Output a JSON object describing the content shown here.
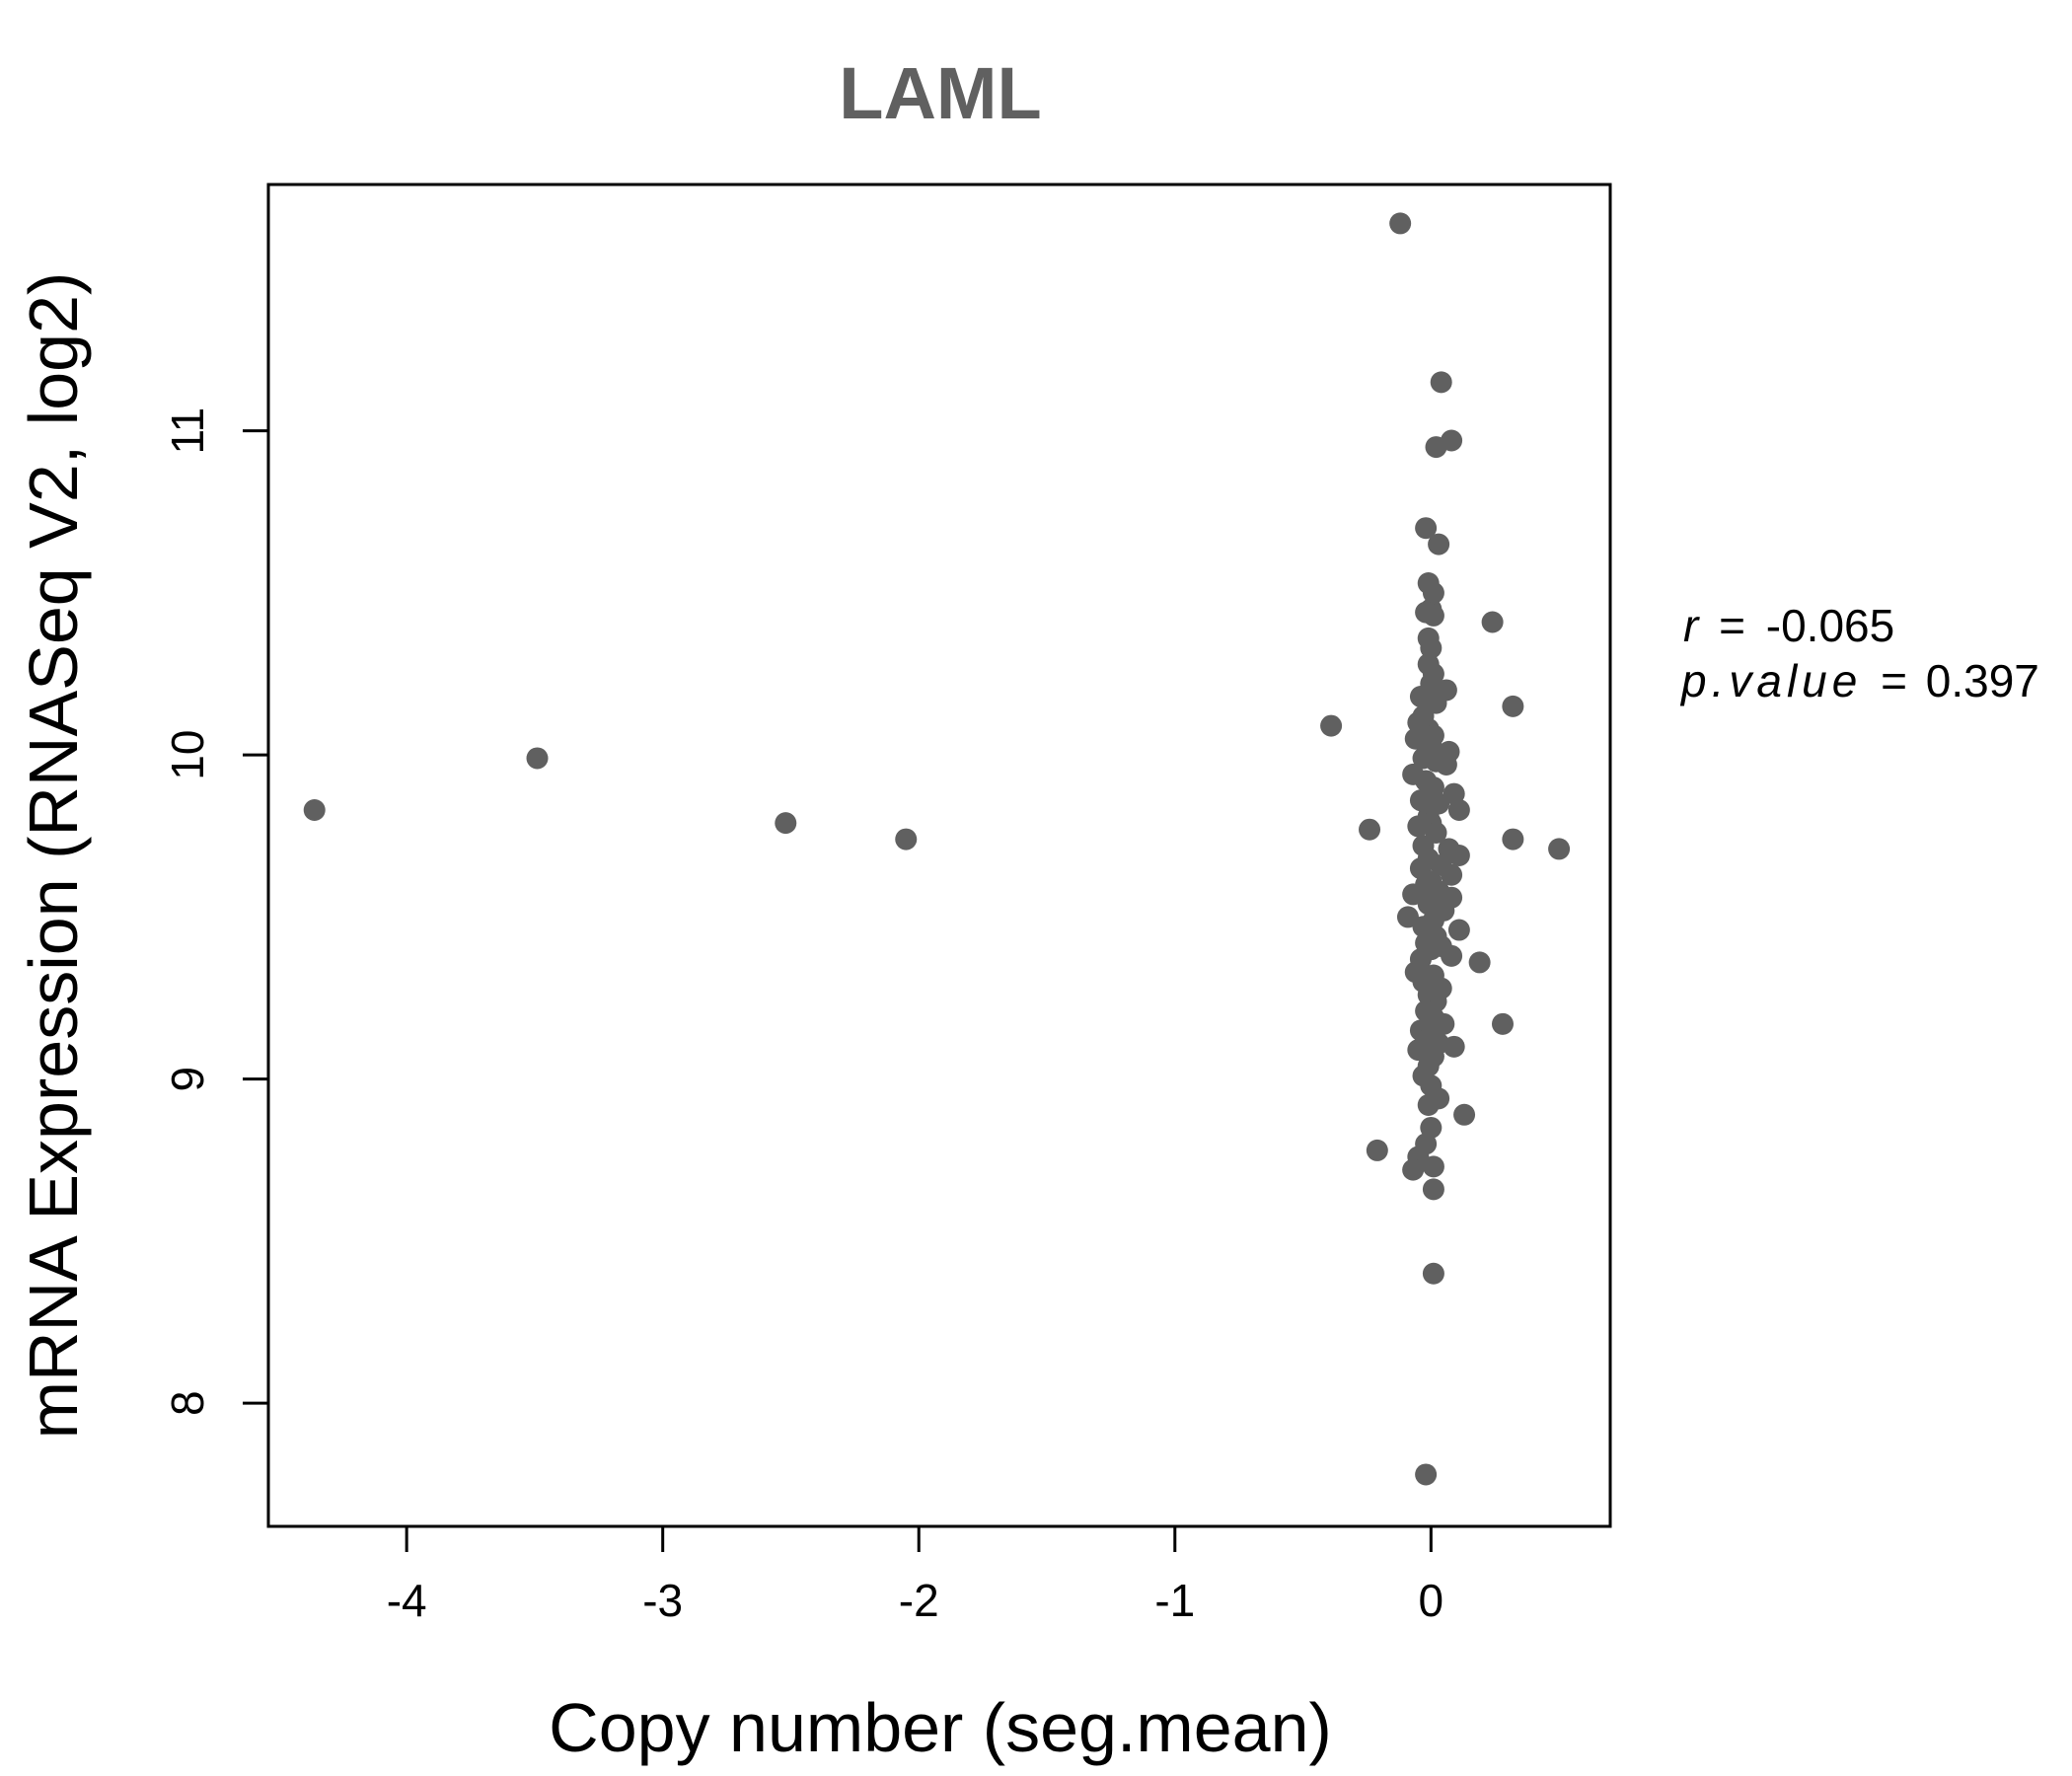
{
  "chart_data": {
    "type": "scatter",
    "title": "LAML",
    "xlabel": "Copy number (seg.mean)",
    "ylabel": "mRNA Expression (RNASeq V2, log2)",
    "xlim": [
      -4.54,
      0.7
    ],
    "ylim": [
      7.62,
      11.76
    ],
    "x_ticks": [
      -4,
      -3,
      -2,
      -1,
      0
    ],
    "x_tick_labels": [
      "-4",
      "-3",
      "-2",
      "-1",
      "0"
    ],
    "y_ticks": [
      8,
      9,
      10,
      11
    ],
    "y_tick_labels": [
      "8",
      "9",
      "10",
      "11"
    ],
    "grid": false,
    "legend": "none",
    "point_color": "#606060",
    "stats": {
      "r_symbol": "r",
      "r_value": "-0.065",
      "p_symbol": "p.value",
      "p_value": "0.397",
      "equals": "="
    },
    "points": [
      {
        "x": -4.36,
        "y": 9.83
      },
      {
        "x": -3.49,
        "y": 9.99
      },
      {
        "x": -2.52,
        "y": 9.79
      },
      {
        "x": -2.05,
        "y": 9.74
      },
      {
        "x": -0.39,
        "y": 10.09
      },
      {
        "x": -0.24,
        "y": 9.77
      },
      {
        "x": -0.21,
        "y": 8.78
      },
      {
        "x": -0.12,
        "y": 11.64
      },
      {
        "x": 0.04,
        "y": 11.15
      },
      {
        "x": 0.08,
        "y": 10.97
      },
      {
        "x": 0.02,
        "y": 10.95
      },
      {
        "x": -0.02,
        "y": 10.7
      },
      {
        "x": 0.03,
        "y": 10.65
      },
      {
        "x": -0.01,
        "y": 10.53
      },
      {
        "x": 0.01,
        "y": 10.5
      },
      {
        "x": 0.0,
        "y": 10.45
      },
      {
        "x": 0.01,
        "y": 10.43
      },
      {
        "x": -0.02,
        "y": 10.44
      },
      {
        "x": 0.24,
        "y": 10.41
      },
      {
        "x": -0.01,
        "y": 10.36
      },
      {
        "x": 0.0,
        "y": 10.33
      },
      {
        "x": -0.01,
        "y": 10.28
      },
      {
        "x": 0.01,
        "y": 10.25
      },
      {
        "x": 0.0,
        "y": 10.22
      },
      {
        "x": 0.06,
        "y": 10.2
      },
      {
        "x": -0.04,
        "y": 10.18
      },
      {
        "x": 0.02,
        "y": 10.16
      },
      {
        "x": 0.32,
        "y": 10.15
      },
      {
        "x": -0.03,
        "y": 10.12
      },
      {
        "x": -0.05,
        "y": 10.1
      },
      {
        "x": -0.01,
        "y": 10.08
      },
      {
        "x": 0.01,
        "y": 10.06
      },
      {
        "x": -0.06,
        "y": 10.05
      },
      {
        "x": 0.0,
        "y": 10.03
      },
      {
        "x": 0.07,
        "y": 10.01
      },
      {
        "x": -0.03,
        "y": 9.99
      },
      {
        "x": 0.02,
        "y": 9.98
      },
      {
        "x": 0.06,
        "y": 9.97
      },
      {
        "x": -0.07,
        "y": 9.94
      },
      {
        "x": -0.02,
        "y": 9.92
      },
      {
        "x": 0.01,
        "y": 9.9
      },
      {
        "x": 0.09,
        "y": 9.88
      },
      {
        "x": -0.04,
        "y": 9.86
      },
      {
        "x": 0.03,
        "y": 9.85
      },
      {
        "x": 0.11,
        "y": 9.83
      },
      {
        "x": -0.01,
        "y": 9.81
      },
      {
        "x": 0.0,
        "y": 9.79
      },
      {
        "x": -0.05,
        "y": 9.78
      },
      {
        "x": 0.02,
        "y": 9.76
      },
      {
        "x": 0.32,
        "y": 9.74
      },
      {
        "x": -0.03,
        "y": 9.72
      },
      {
        "x": 0.07,
        "y": 9.71
      },
      {
        "x": 0.5,
        "y": 9.71
      },
      {
        "x": 0.11,
        "y": 9.69
      },
      {
        "x": -0.01,
        "y": 9.68
      },
      {
        "x": 0.04,
        "y": 9.66
      },
      {
        "x": -0.04,
        "y": 9.65
      },
      {
        "x": 0.08,
        "y": 9.63
      },
      {
        "x": 0.0,
        "y": 9.61
      },
      {
        "x": -0.02,
        "y": 9.6
      },
      {
        "x": 0.03,
        "y": 9.58
      },
      {
        "x": -0.07,
        "y": 9.57
      },
      {
        "x": 0.08,
        "y": 9.56
      },
      {
        "x": -0.01,
        "y": 9.54
      },
      {
        "x": 0.05,
        "y": 9.52
      },
      {
        "x": -0.09,
        "y": 9.5
      },
      {
        "x": 0.01,
        "y": 9.49
      },
      {
        "x": -0.03,
        "y": 9.47
      },
      {
        "x": 0.11,
        "y": 9.46
      },
      {
        "x": 0.02,
        "y": 9.44
      },
      {
        "x": -0.02,
        "y": 9.42
      },
      {
        "x": 0.04,
        "y": 9.41
      },
      {
        "x": 0.0,
        "y": 9.4
      },
      {
        "x": 0.08,
        "y": 9.38
      },
      {
        "x": -0.04,
        "y": 9.37
      },
      {
        "x": 0.19,
        "y": 9.36
      },
      {
        "x": -0.06,
        "y": 9.33
      },
      {
        "x": 0.01,
        "y": 9.32
      },
      {
        "x": -0.03,
        "y": 9.3
      },
      {
        "x": 0.04,
        "y": 9.28
      },
      {
        "x": -0.01,
        "y": 9.26
      },
      {
        "x": 0.02,
        "y": 9.24
      },
      {
        "x": -0.02,
        "y": 9.21
      },
      {
        "x": 0.01,
        "y": 9.19
      },
      {
        "x": 0.05,
        "y": 9.17
      },
      {
        "x": 0.28,
        "y": 9.17
      },
      {
        "x": -0.04,
        "y": 9.15
      },
      {
        "x": 0.0,
        "y": 9.14
      },
      {
        "x": -0.02,
        "y": 9.12
      },
      {
        "x": 0.03,
        "y": 9.11
      },
      {
        "x": 0.09,
        "y": 9.1
      },
      {
        "x": -0.05,
        "y": 9.09
      },
      {
        "x": 0.01,
        "y": 9.07
      },
      {
        "x": -0.01,
        "y": 9.04
      },
      {
        "x": -0.03,
        "y": 9.01
      },
      {
        "x": 0.0,
        "y": 8.98
      },
      {
        "x": 0.03,
        "y": 8.94
      },
      {
        "x": -0.01,
        "y": 8.92
      },
      {
        "x": 0.13,
        "y": 8.89
      },
      {
        "x": 0.0,
        "y": 8.85
      },
      {
        "x": -0.02,
        "y": 8.8
      },
      {
        "x": -0.05,
        "y": 8.76
      },
      {
        "x": 0.01,
        "y": 8.73
      },
      {
        "x": -0.07,
        "y": 8.72
      },
      {
        "x": 0.01,
        "y": 8.66
      },
      {
        "x": 0.01,
        "y": 8.4
      },
      {
        "x": -0.02,
        "y": 7.78
      }
    ]
  }
}
